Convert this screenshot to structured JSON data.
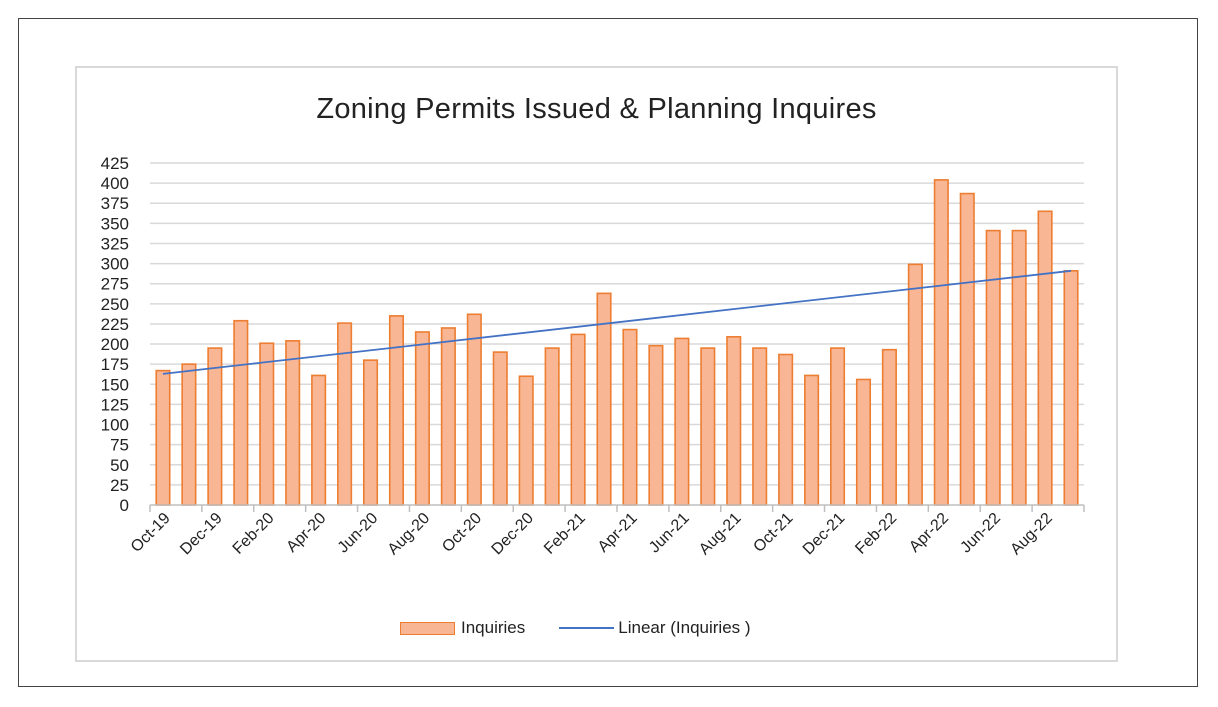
{
  "chart_data": {
    "type": "bar",
    "title": "Zoning Permits Issued & Planning Inquires",
    "xlabel": "",
    "ylabel": "",
    "ylim": [
      0,
      425
    ],
    "yticks": [
      0,
      25,
      50,
      75,
      100,
      125,
      150,
      175,
      200,
      225,
      250,
      275,
      300,
      325,
      350,
      375,
      400,
      425
    ],
    "categories": [
      "Oct-19",
      "Nov-19",
      "Dec-19",
      "Jan-20",
      "Feb-20",
      "Mar-20",
      "Apr-20",
      "May-20",
      "Jun-20",
      "Jul-20",
      "Aug-20",
      "Sep-20",
      "Oct-20",
      "Nov-20",
      "Dec-20",
      "Jan-21",
      "Feb-21",
      "Mar-21",
      "Apr-21",
      "May-21",
      "Jun-21",
      "Jul-21",
      "Aug-21",
      "Sep-21",
      "Oct-21",
      "Nov-21",
      "Dec-21",
      "Jan-22",
      "Feb-22",
      "Mar-22",
      "Apr-22",
      "May-22",
      "Jun-22",
      "Jul-22",
      "Aug-22",
      "Sep-22"
    ],
    "tick_labels": [
      "Oct-19",
      "Dec-19",
      "Feb-20",
      "Apr-20",
      "Jun-20",
      "Aug-20",
      "Oct-20",
      "Dec-20",
      "Feb-21",
      "Apr-21",
      "Jun-21",
      "Aug-21",
      "Oct-21",
      "Dec-21",
      "Feb-22",
      "Apr-22",
      "Jun-22",
      "Aug-22"
    ],
    "series": [
      {
        "name": "Inquiries",
        "type": "bar",
        "values": [
          167,
          175,
          195,
          229,
          201,
          204,
          161,
          226,
          180,
          235,
          215,
          220,
          237,
          190,
          160,
          195,
          212,
          263,
          218,
          198,
          207,
          195,
          209,
          195,
          187,
          161,
          195,
          156,
          193,
          299,
          404,
          387,
          341,
          341,
          365,
          291
        ]
      },
      {
        "name": "Linear (Inquiries )",
        "type": "line",
        "start": 163,
        "end": 291
      }
    ],
    "grid": true,
    "legend": "bottom",
    "colors": {
      "bar_fill": "#f8b695",
      "bar_edge": "#ed7d31",
      "trend": "#4472c4",
      "grid": "#d9d9d9",
      "axis": "#bfbfbf"
    }
  },
  "legend": {
    "bar_label": "Inquiries",
    "line_label": "Linear (Inquiries )"
  }
}
